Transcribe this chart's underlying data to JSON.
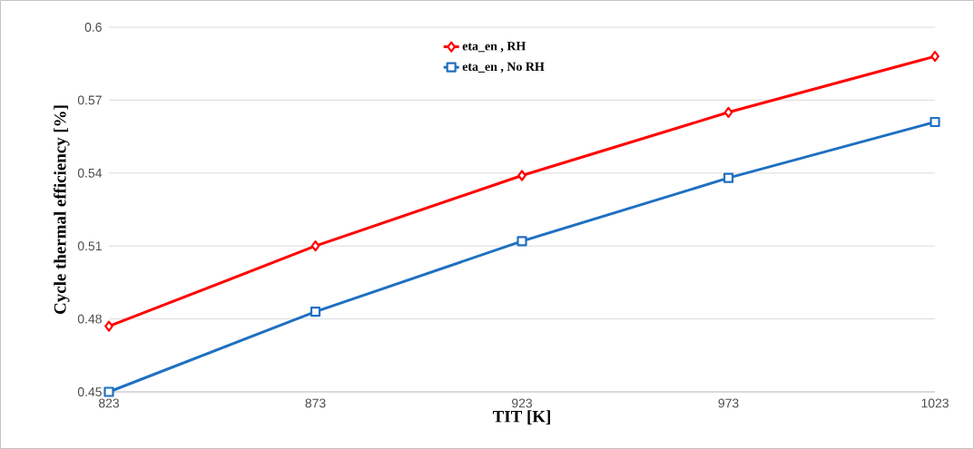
{
  "chart_data": {
    "type": "line",
    "xlabel": "TIT [K]",
    "ylabel": "Cycle thermal efficiency [%]",
    "x": [
      823,
      873,
      923,
      973,
      1023
    ],
    "series": [
      {
        "name": "eta_en , RH",
        "color": "#ff0000",
        "marker": "diamond",
        "values": [
          0.477,
          0.51,
          0.539,
          0.565,
          0.588
        ]
      },
      {
        "name": "eta_en , No RH",
        "color": "#1f70c1",
        "marker": "square",
        "values": [
          0.45,
          0.483,
          0.512,
          0.538,
          0.561
        ]
      }
    ],
    "xlim": [
      823,
      1023
    ],
    "xticks": [
      823,
      873,
      923,
      973,
      1023
    ],
    "ylim": [
      0.45,
      0.6
    ],
    "yticks": [
      0.45,
      0.48,
      0.51,
      0.54,
      0.57,
      0.6
    ],
    "grid": "y",
    "legend": "top",
    "line_style": "solid"
  }
}
